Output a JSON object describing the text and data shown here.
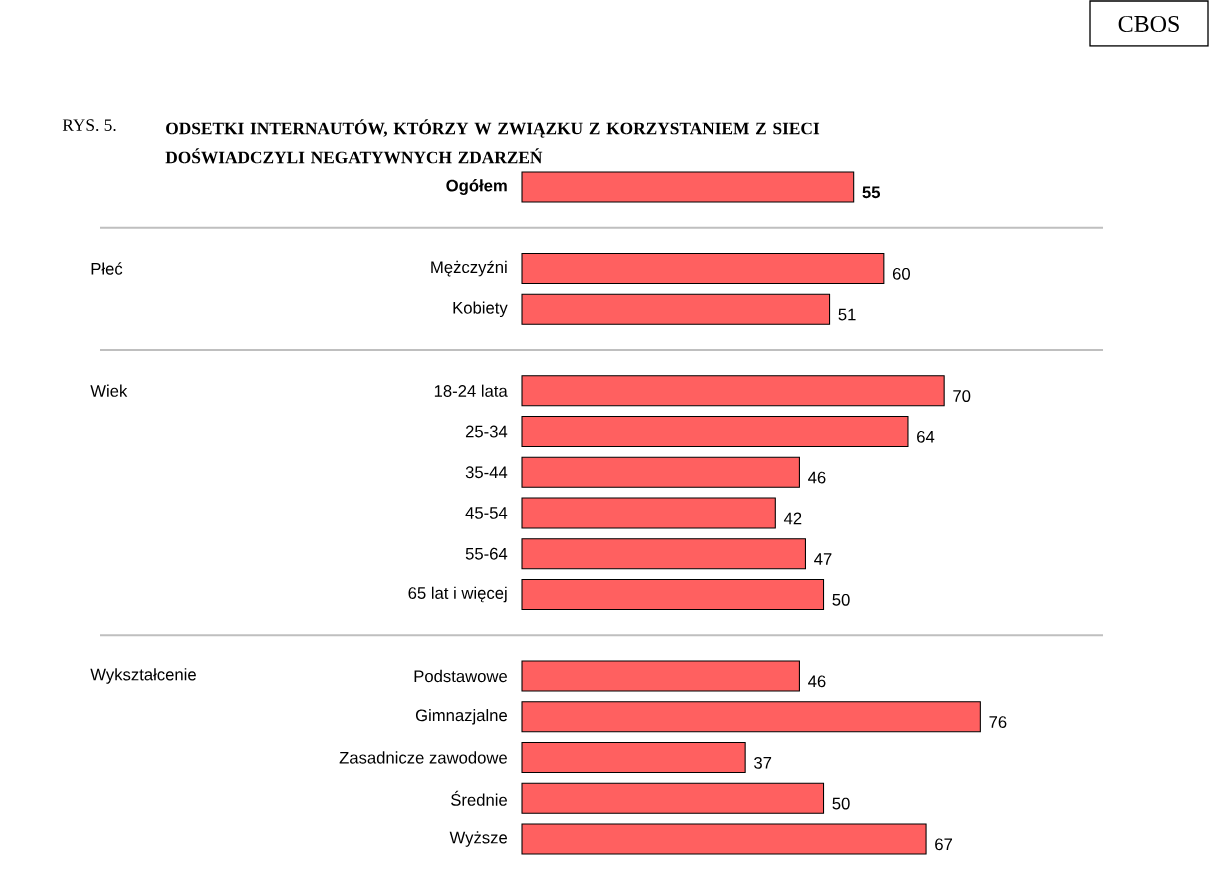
{
  "chart_data": {
    "type": "bar",
    "orientation": "horizontal",
    "title": "ODSETKI INTERNAUTÓW, KTÓRZY W ZWIĄZKU Z KORZYSTANIEM Z SIECI DOŚWIADCZYLI NEGATYWNYCH ZDARZEŃ",
    "categories": [
      "Ogółem",
      null,
      "Mężczyźni",
      "Kobiety",
      null,
      "18-24 lata",
      "25-34",
      "35-44",
      "45-54",
      "55-64",
      "65 lat i więcej",
      null,
      "Podstawowe",
      "Gimnazjalne",
      "Zasadnicze zawodowe",
      "Średnie",
      "Wyższe"
    ],
    "values": [
      55,
      null,
      60,
      51,
      null,
      70,
      64,
      46,
      42,
      47,
      50,
      null,
      46,
      76,
      37,
      50,
      67
    ],
    "color": "#ff6060",
    "data_labels": true,
    "annotations": [
      "RYS. 5.",
      "CBOS",
      "Płeć",
      "Wiek",
      "Wykształcenie"
    ]
  }
}
